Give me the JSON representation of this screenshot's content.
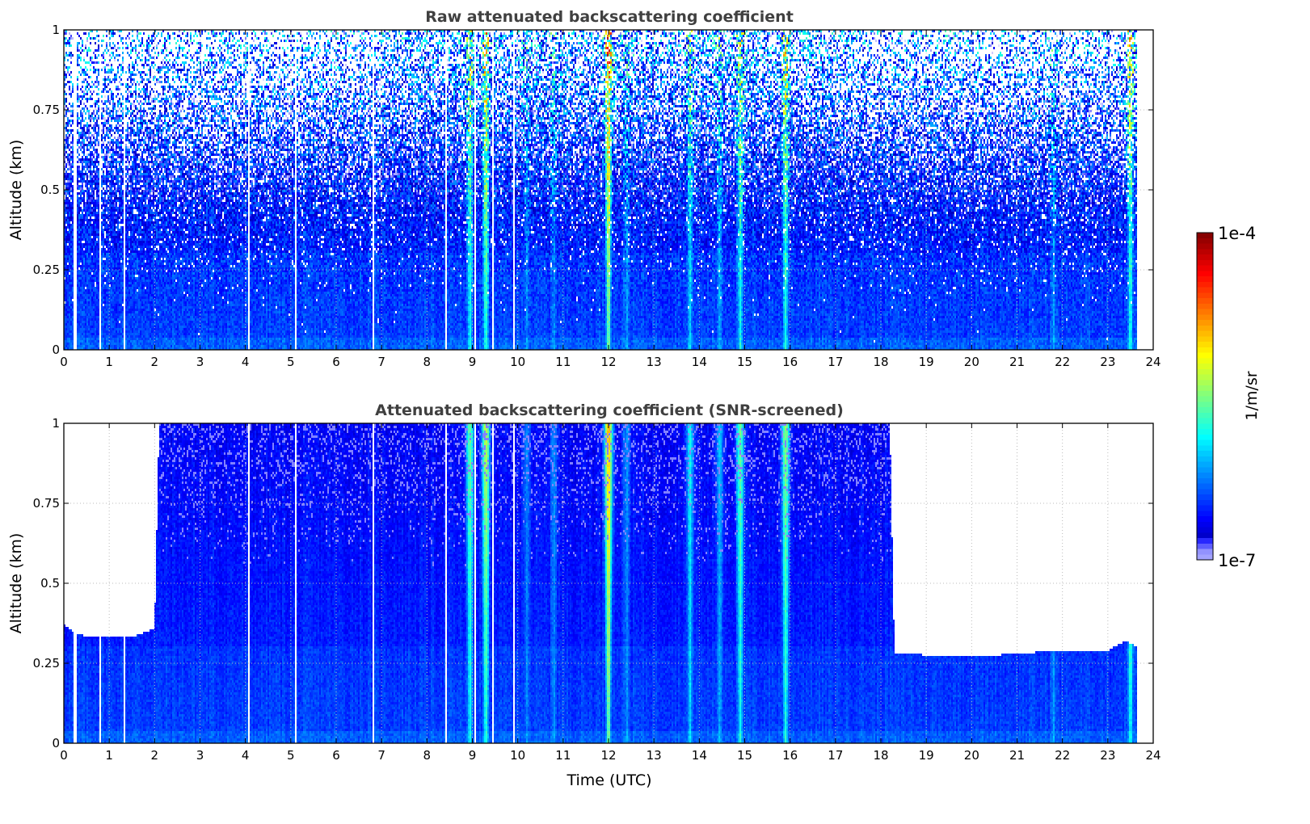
{
  "chart_data": [
    {
      "type": "heatmap",
      "title": "Raw attenuated backscattering coefficient",
      "xlabel": "",
      "ylabel": "Altitude (km)",
      "xlim": [
        0,
        24
      ],
      "ylim": [
        0,
        1
      ],
      "xticks": [
        "0",
        "1",
        "2",
        "3",
        "4",
        "5",
        "6",
        "7",
        "8",
        "9",
        "10",
        "11",
        "12",
        "13",
        "14",
        "15",
        "16",
        "17",
        "18",
        "19",
        "20",
        "21",
        "22",
        "23",
        "24"
      ],
      "yticks": [
        "0",
        "0.25",
        "0.5",
        "0.75",
        "1"
      ],
      "grid": true,
      "data_end_time": 23.65,
      "screened": false
    },
    {
      "type": "heatmap",
      "title": "Attenuated backscattering coefficient (SNR-screened)",
      "xlabel": "Time (UTC)",
      "ylabel": "Altitude (km)",
      "xlim": [
        0,
        24
      ],
      "ylim": [
        0,
        1
      ],
      "xticks": [
        "0",
        "1",
        "2",
        "3",
        "4",
        "5",
        "6",
        "7",
        "8",
        "9",
        "10",
        "11",
        "12",
        "13",
        "14",
        "15",
        "16",
        "17",
        "18",
        "19",
        "20",
        "21",
        "22",
        "23",
        "24"
      ],
      "yticks": [
        "0",
        "0.25",
        "0.5",
        "0.75",
        "1"
      ],
      "grid": true,
      "data_end_time": 23.65,
      "screened": true,
      "screen_top_km": [
        [
          0,
          0.37
        ],
        [
          0.3,
          0.34
        ],
        [
          0.7,
          0.33
        ],
        [
          1.5,
          0.33
        ],
        [
          2.0,
          0.36
        ],
        [
          2.1,
          1.0
        ],
        [
          18.2,
          1.0
        ],
        [
          18.3,
          0.28
        ],
        [
          20.0,
          0.27
        ],
        [
          21.0,
          0.28
        ],
        [
          22.0,
          0.29
        ],
        [
          23.0,
          0.29
        ],
        [
          23.4,
          0.32
        ],
        [
          23.65,
          0.3
        ]
      ]
    }
  ],
  "plumes_utc": [
    {
      "t": 8.95,
      "strength": 0.35
    },
    {
      "t": 9.3,
      "strength": 0.45
    },
    {
      "t": 10.2,
      "strength": 0.15
    },
    {
      "t": 10.8,
      "strength": 0.15
    },
    {
      "t": 12.0,
      "strength": 0.6
    },
    {
      "t": 12.4,
      "strength": 0.15
    },
    {
      "t": 13.8,
      "strength": 0.25
    },
    {
      "t": 14.45,
      "strength": 0.2
    },
    {
      "t": 14.9,
      "strength": 0.35
    },
    {
      "t": 15.9,
      "strength": 0.4
    },
    {
      "t": 21.8,
      "strength": 0.15
    },
    {
      "t": 23.5,
      "strength": 0.4
    }
  ],
  "colorbar": {
    "label": "1/m/sr",
    "min_label": "1e-7",
    "max_label": "1e-4",
    "min_log10": -7,
    "max_log10": -4,
    "colormap": "jet"
  }
}
